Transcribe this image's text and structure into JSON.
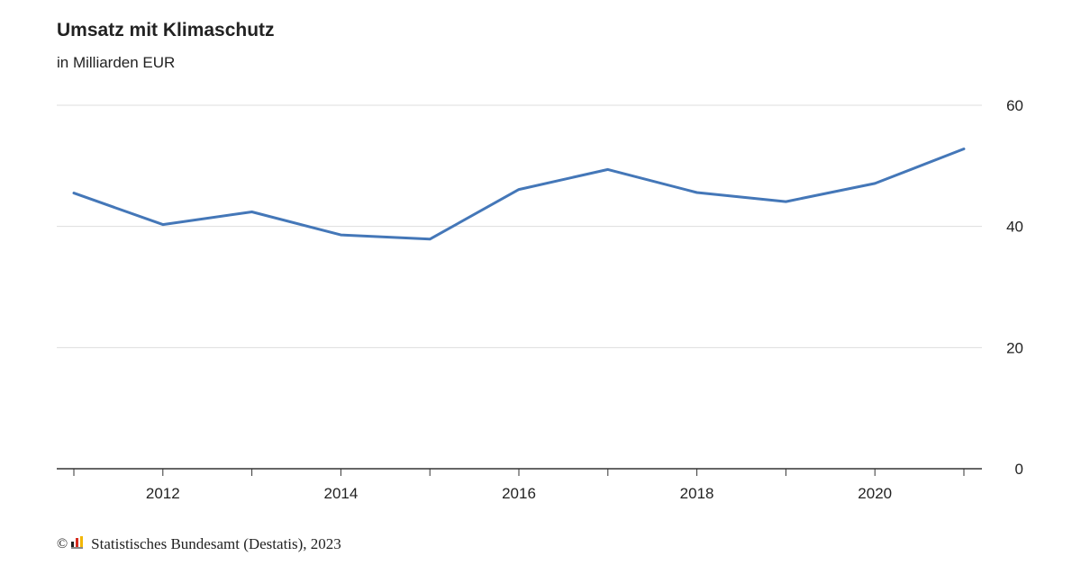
{
  "chart_data": {
    "type": "line",
    "title": "Umsatz mit Klimaschutz",
    "subtitle": "in Milliarden EUR",
    "x": [
      2011,
      2012,
      2013,
      2014,
      2015,
      2016,
      2017,
      2018,
      2019,
      2020,
      2021
    ],
    "x_tick_labels": [
      "2012",
      "2014",
      "2016",
      "2018",
      "2020"
    ],
    "series": [
      {
        "values": [
          45.5,
          40.3,
          42.4,
          38.6,
          37.9,
          46.1,
          49.4,
          45.6,
          44.1,
          47.1,
          52.8
        ]
      }
    ],
    "ylim": [
      0,
      60
    ],
    "y_ticks": [
      0,
      20,
      40,
      60
    ],
    "y_axis_position": "right",
    "grid": true,
    "line_color": "#4477b8"
  },
  "footer": {
    "copyright_symbol": "©",
    "source": "Statistisches Bundesamt (Destatis), 2023"
  }
}
